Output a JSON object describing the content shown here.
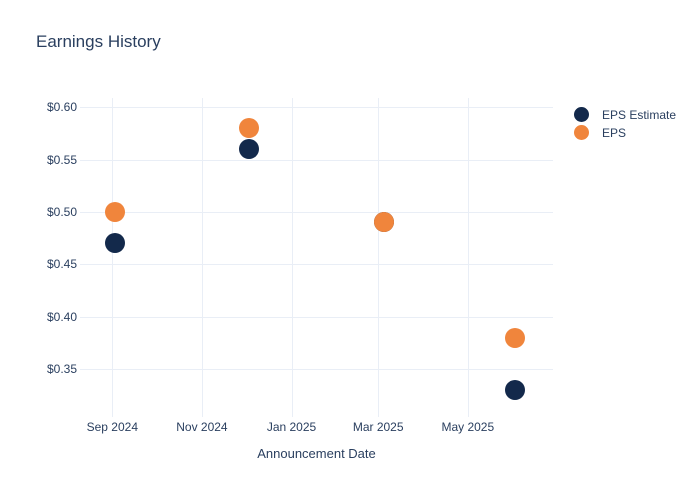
{
  "chart_data": {
    "type": "scatter",
    "title": "Earnings History",
    "xlabel": "Announcement Date",
    "x_dates": [
      "2024-09-03",
      "2024-12-03",
      "2025-03-05",
      "2025-06-02"
    ],
    "series": [
      {
        "name": "EPS Estimate",
        "color": "#13294B",
        "values": [
          0.47,
          0.56,
          0.49,
          0.33
        ]
      },
      {
        "name": "EPS",
        "color": "#F0853C",
        "values": [
          0.5,
          0.58,
          0.49,
          0.38
        ]
      }
    ],
    "x_axis": {
      "range": [
        "2024-08-10",
        "2025-06-28"
      ],
      "ticks": [
        {
          "date": "2024-09-01",
          "label": "Sep 2024"
        },
        {
          "date": "2024-11-01",
          "label": "Nov 2024"
        },
        {
          "date": "2025-01-01",
          "label": "Jan 2025"
        },
        {
          "date": "2025-03-01",
          "label": "Mar 2025"
        },
        {
          "date": "2025-05-01",
          "label": "May 2025"
        }
      ]
    },
    "y_axis": {
      "range": [
        0.304,
        0.609
      ],
      "ticks": [
        {
          "value": 0.6,
          "label": "$0.60"
        },
        {
          "value": 0.55,
          "label": "$0.55"
        },
        {
          "value": 0.5,
          "label": "$0.50"
        },
        {
          "value": 0.45,
          "label": "$0.45"
        },
        {
          "value": 0.4,
          "label": "$0.40"
        },
        {
          "value": 0.35,
          "label": "$0.35"
        }
      ]
    },
    "grid": true,
    "legend_position": "outside-top-right",
    "marker_diameter_px": 20,
    "colors": {
      "text": "#2a3f5f",
      "grid": "#e9eef6",
      "background": "#ffffff"
    }
  }
}
